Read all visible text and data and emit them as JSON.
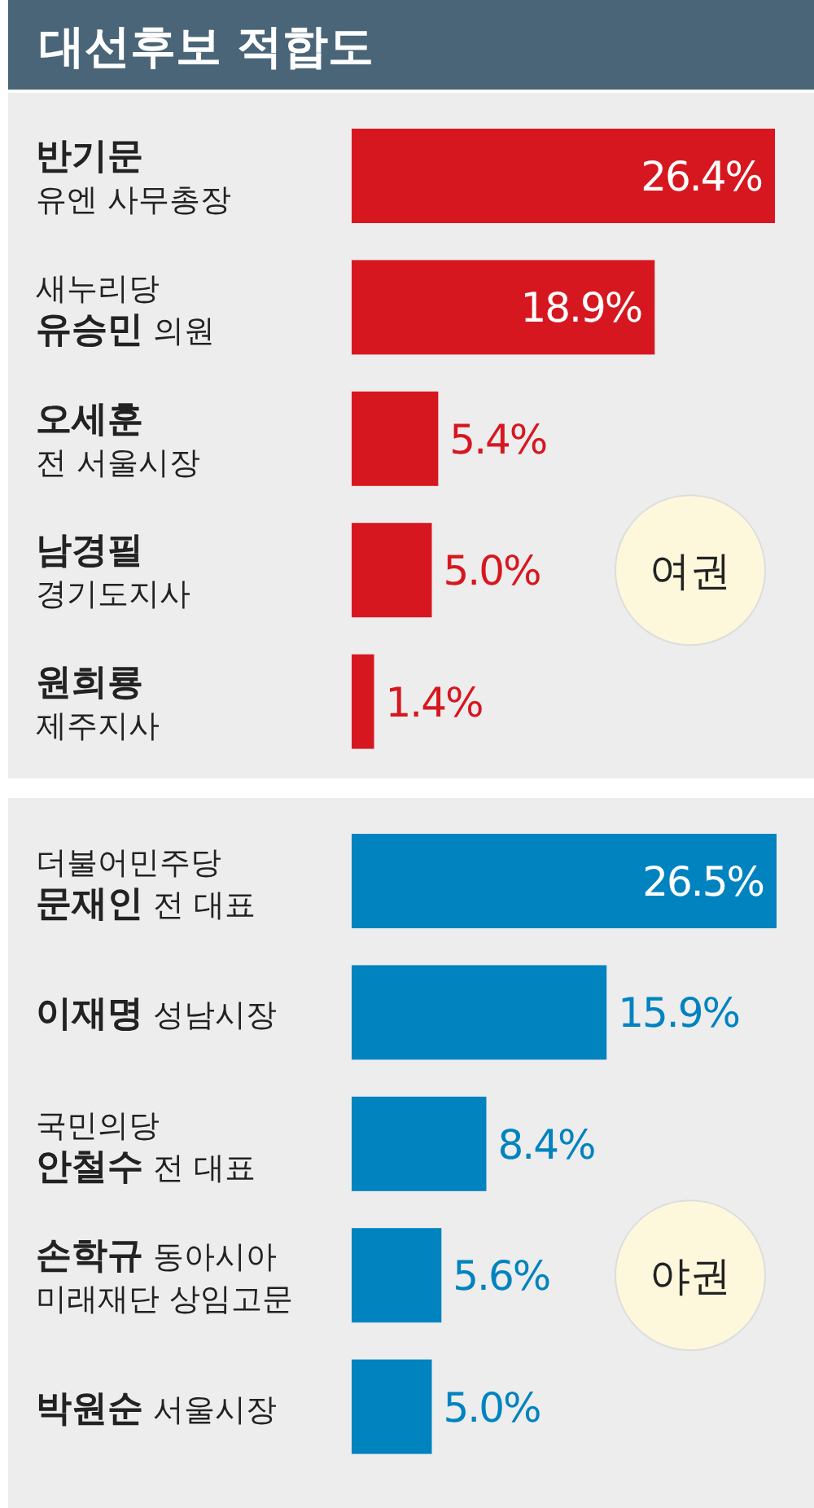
{
  "chart_data": [
    {
      "type": "bar",
      "orientation": "horizontal",
      "title": "대선후보 적합도",
      "categories": [
        "반기문\n유엔 사무총장",
        "새누리당\n유승민 의원",
        "오세훈\n전 서울시장",
        "남경필\n경기도지사",
        "원희룡\n제주지사"
      ],
      "values": [
        26.4,
        18.9,
        5.4,
        5.0,
        1.4
      ],
      "value_labels": [
        "26.4%",
        "18.9%",
        "5.4%",
        "5.0%",
        "1.4%"
      ],
      "color": "#d7171f",
      "annotations": [
        "여권"
      ]
    },
    {
      "type": "bar",
      "orientation": "horizontal",
      "categories": [
        "더불어민주당\n문재인 전 대표",
        "이재명 성남시장",
        "국민의당\n안철수 전 대표",
        "손학규 동아시아\n미래재단 상임고문",
        "박원순 서울시장"
      ],
      "values": [
        26.5,
        15.9,
        8.4,
        5.6,
        5.0
      ],
      "value_labels": [
        "26.5%",
        "15.9%",
        "8.4%",
        "5.6%",
        "5.0%"
      ],
      "color": "#0083bf",
      "annotations": [
        "야권"
      ]
    }
  ]
}
